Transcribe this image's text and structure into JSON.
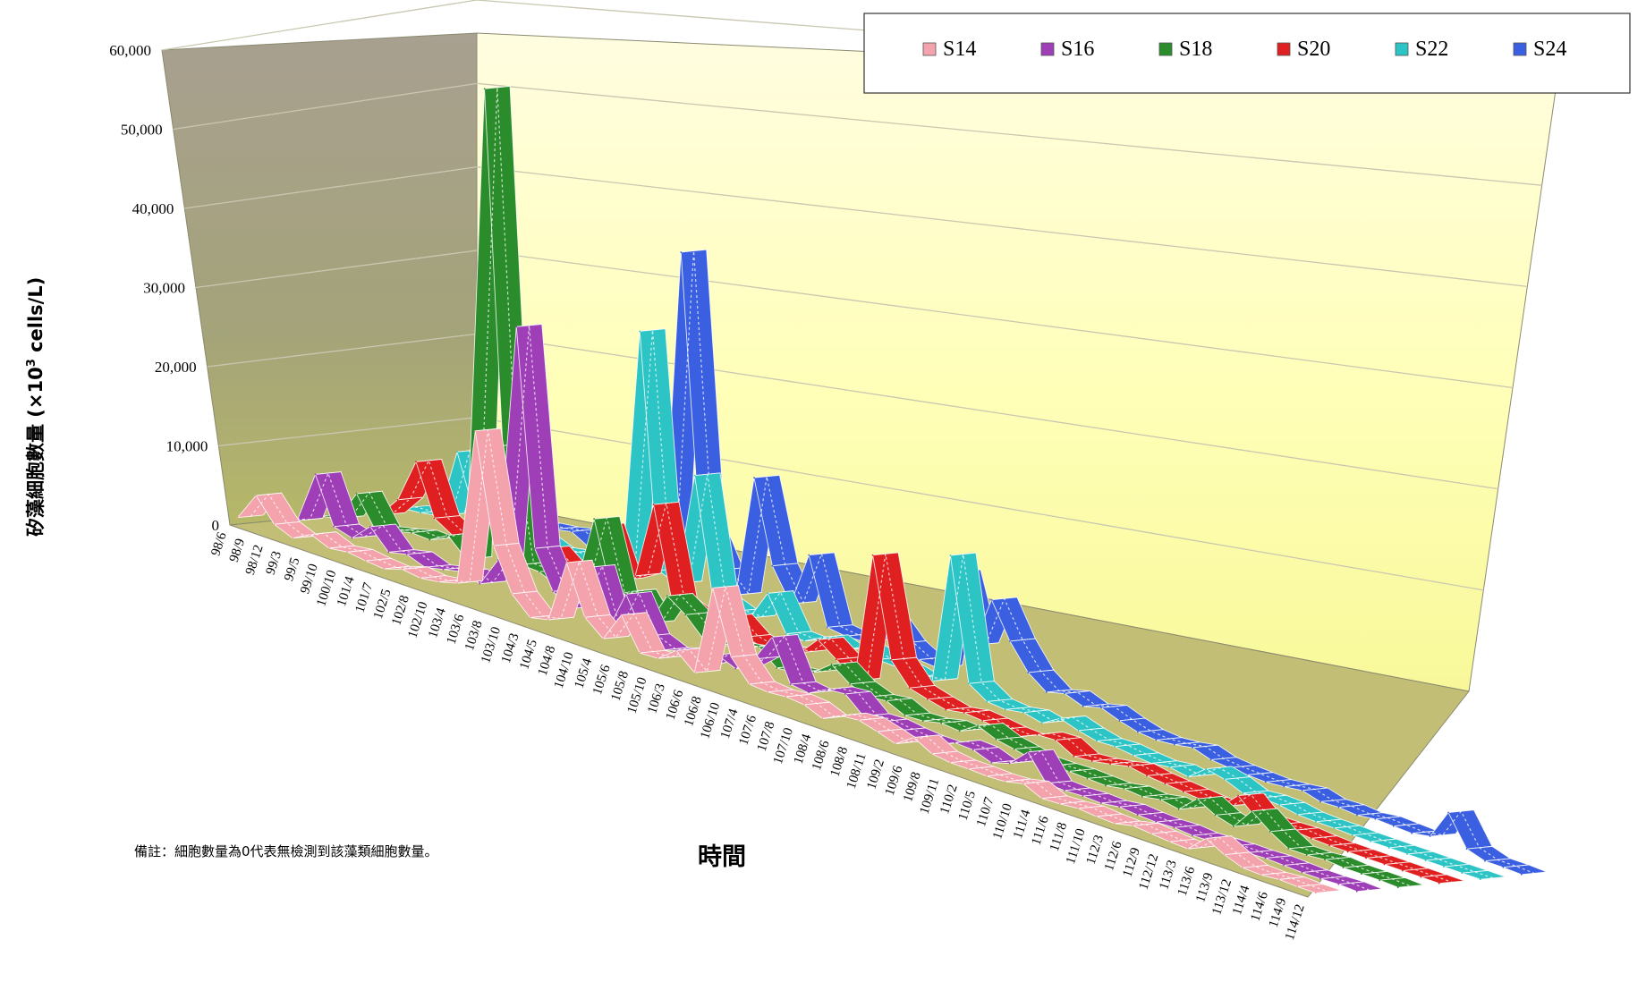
{
  "chart_data": {
    "type": "area",
    "style": "3d-ribbon",
    "title": "",
    "ylabel": "矽藻細胞數量 (×10³ cells/L)",
    "ylabel_main": "矽藻細胞數量 (×10",
    "ylabel_sup": "3",
    "ylabel_tail": " cells/L)",
    "xlabel": "時間",
    "ylim": [
      0,
      60000
    ],
    "yticks": [
      "0",
      "10,000",
      "20,000",
      "30,000",
      "40,000",
      "50,000",
      "60,000"
    ],
    "ytick_values": [
      0,
      10000,
      20000,
      30000,
      40000,
      50000,
      60000
    ],
    "legend_position": "top-right",
    "note": "備註：細胞數量為0代表無檢測到該藻類細胞數量。",
    "categories": [
      "98/6",
      "98/9",
      "98/12",
      "99/3",
      "99/5",
      "99/10",
      "100/10",
      "101/4",
      "101/7",
      "102/5",
      "102/8",
      "102/10",
      "103/4",
      "103/6",
      "103/8",
      "103/10",
      "104/3",
      "104/5",
      "104/8",
      "104/10",
      "105/4",
      "105/6",
      "105/8",
      "105/10",
      "106/3",
      "106/6",
      "106/8",
      "106/10",
      "107/4",
      "107/6",
      "107/8",
      "107/10",
      "108/4",
      "108/6",
      "108/8",
      "108/11",
      "109/2",
      "109/6",
      "109/8",
      "109/11",
      "110/2",
      "110/5",
      "110/7",
      "110/10",
      "111/4",
      "111/6",
      "111/8",
      "111/10",
      "112/3",
      "112/6",
      "112/9",
      "112/12",
      "113/3",
      "113/6",
      "113/9",
      "113/12",
      "114/4",
      "114/6",
      "114/9",
      "114/12"
    ],
    "series": [
      {
        "name": "S14",
        "color": "#f4a3ad",
        "pattern": "hatch",
        "values": [
          800,
          4200,
          1500,
          600,
          1800,
          900,
          1200,
          900,
          700,
          1400,
          1100,
          1400,
          2000,
          21000,
          8000,
          3000,
          900,
          1400,
          9000,
          3200,
          1400,
          5000,
          1200,
          1300,
          3000,
          1100,
          12000,
          4500,
          2000,
          1800,
          2000,
          1800,
          900,
          2000,
          2200,
          1600,
          900,
          2400,
          1200,
          900,
          900,
          800,
          900,
          1400,
          400,
          500,
          700,
          500,
          400,
          900,
          700,
          500,
          400,
          2400,
          1200,
          400,
          300,
          500,
          400,
          400
        ]
      },
      {
        "name": "S16",
        "color": "#9e3fb8",
        "pattern": "dots",
        "values": [
          0,
          700,
          7000,
          1500,
          900,
          3000,
          700,
          1200,
          400,
          900,
          1400,
          700,
          4300,
          33000,
          7200,
          2800,
          1500,
          7200,
          400,
          5500,
          1200,
          300,
          1000,
          0,
          2000,
          1100,
          3000,
          6400,
          1500,
          1200,
          2400,
          2600,
          700,
          800,
          500,
          300,
          300,
          1300,
          1200,
          400,
          1100,
          3200,
          200,
          100,
          200,
          100,
          400,
          200,
          100,
          200,
          0,
          100,
          200,
          200,
          300,
          200,
          100,
          100,
          200,
          100
        ]
      },
      {
        "name": "S18",
        "color": "#2a8c2a",
        "pattern": "checker",
        "values": [
          0,
          500,
          4200,
          700,
          1200,
          1800,
          1700,
          3000,
          900,
          58000,
          16000,
          2500,
          2400,
          1400,
          2200,
          11000,
          2600,
          3800,
          800,
          4800,
          3300,
          1100,
          1200,
          1600,
          2500,
          700,
          900,
          1700,
          3400,
          1800,
          1000,
          1300,
          300,
          400,
          900,
          700,
          2100,
          1200,
          800,
          300,
          300,
          400,
          300,
          200,
          600,
          400,
          800,
          400,
          2400,
          1200,
          600,
          3200,
          1500,
          200,
          200,
          400,
          200,
          200,
          200,
          100
        ]
      },
      {
        "name": "S20",
        "color": "#e02020",
        "pattern": "checker",
        "values": [
          0,
          400,
          3000,
          8300,
          2300,
          1000,
          1500,
          1800,
          1700,
          1000,
          3200,
          1500,
          700,
          8200,
          2400,
          3700,
          13000,
          2200,
          1300,
          1000,
          2600,
          900,
          400,
          900,
          1300,
          3600,
          2000,
          200,
          16000,
          4200,
          1600,
          1000,
          500,
          900,
          700,
          400,
          300,
          1300,
          1400,
          200,
          400,
          800,
          1300,
          900,
          700,
          500,
          300,
          200,
          2300,
          300,
          300,
          400,
          200,
          100,
          100,
          100,
          100,
          100,
          100,
          100
        ]
      },
      {
        "name": "S22",
        "color": "#2cc4c4",
        "pattern": "diamond",
        "values": [
          0,
          200,
          600,
          9000,
          2000,
          700,
          1200,
          1800,
          1000,
          1400,
          600,
          2200,
          700,
          31000,
          3100,
          2300,
          16000,
          2000,
          1200,
          1200,
          4900,
          800,
          700,
          1900,
          1100,
          2200,
          1500,
          1400,
          900,
          1200,
          17000,
          2400,
          1000,
          800,
          1200,
          700,
          2000,
          1300,
          800,
          900,
          600,
          400,
          700,
          300,
          2000,
          1500,
          600,
          800,
          700,
          300,
          200,
          200,
          100,
          100,
          100,
          100,
          100,
          100,
          100,
          100
        ]
      },
      {
        "name": "S24",
        "color": "#3a5fe0",
        "pattern": "wave",
        "values": [
          0,
          700,
          500,
          600,
          800,
          1200,
          1500,
          2000,
          800,
          1300,
          1700,
          1100,
          1800,
          40000,
          8000,
          3400,
          1200,
          16000,
          6200,
          2400,
          9000,
          1100,
          800,
          900,
          4500,
          2200,
          1000,
          800,
          13000,
          5000,
          11200,
          7000,
          4000,
          2400,
          3000,
          2200,
          2800,
          2000,
          1400,
          1200,
          1400,
          1800,
          1100,
          900,
          800,
          700,
          900,
          1200,
          600,
          700,
          500,
          800,
          700,
          600,
          1000,
          4600,
          1000,
          300,
          300,
          200
        ]
      }
    ]
  }
}
